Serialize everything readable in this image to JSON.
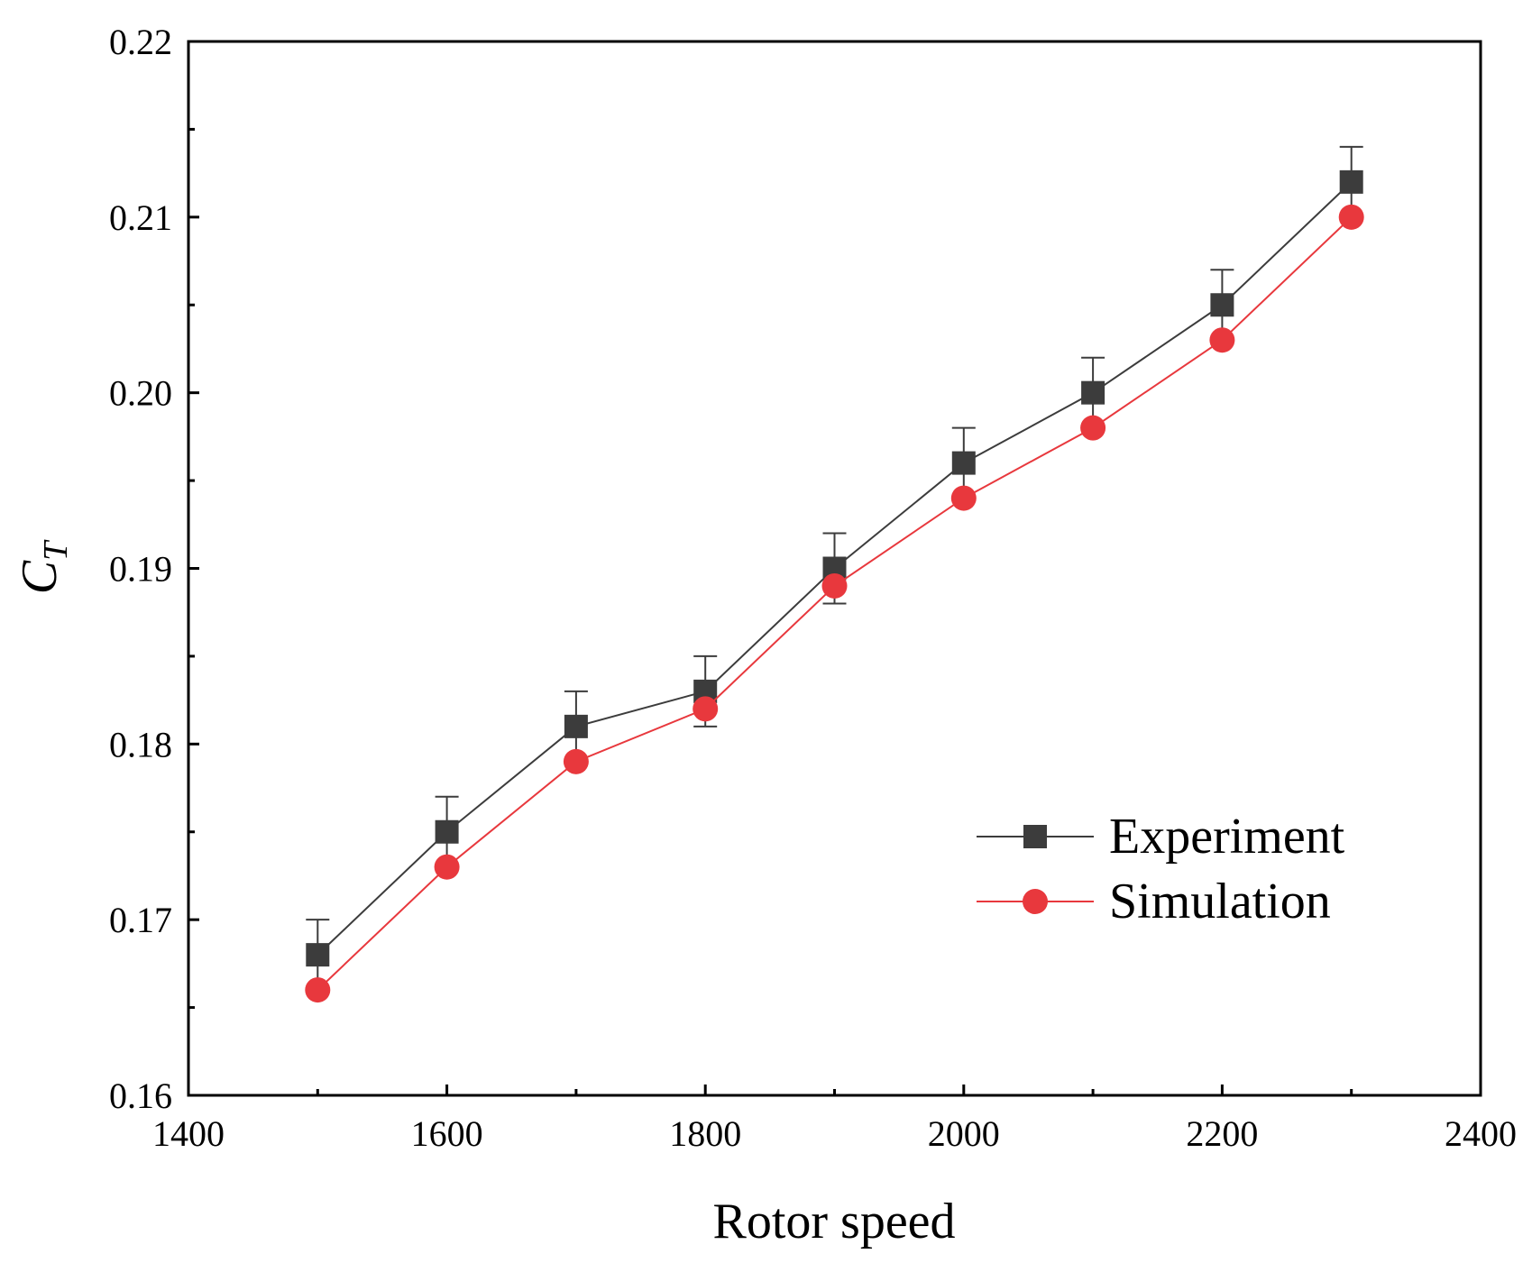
{
  "chart_data": {
    "type": "line",
    "title": "",
    "xlabel": "Rotor speed",
    "ylabel": "C",
    "ylabel_subscript": "T",
    "xlim": [
      1400,
      2400
    ],
    "ylim": [
      0.16,
      0.22
    ],
    "xticks": [
      "1400",
      "1600",
      "1800",
      "2000",
      "2200",
      "2400"
    ],
    "yticks": [
      "0.16",
      "0.17",
      "0.18",
      "0.19",
      "0.20",
      "0.21",
      "0.22"
    ],
    "grid": false,
    "legend_position": "lower-right",
    "x": [
      1500,
      1600,
      1700,
      1800,
      1900,
      2000,
      2100,
      2200,
      2300
    ],
    "series": [
      {
        "name": "Experiment",
        "color": "#3c3c3c",
        "marker": "square",
        "values": [
          0.168,
          0.175,
          0.181,
          0.183,
          0.19,
          0.196,
          0.2,
          0.205,
          0.212
        ],
        "error": [
          0.002,
          0.002,
          0.002,
          0.002,
          0.002,
          0.002,
          0.002,
          0.002,
          0.002
        ]
      },
      {
        "name": "Simulation",
        "color": "#e8383d",
        "marker": "circle",
        "values": [
          0.166,
          0.173,
          0.179,
          0.182,
          0.189,
          0.194,
          0.198,
          0.203,
          0.21
        ]
      }
    ]
  }
}
